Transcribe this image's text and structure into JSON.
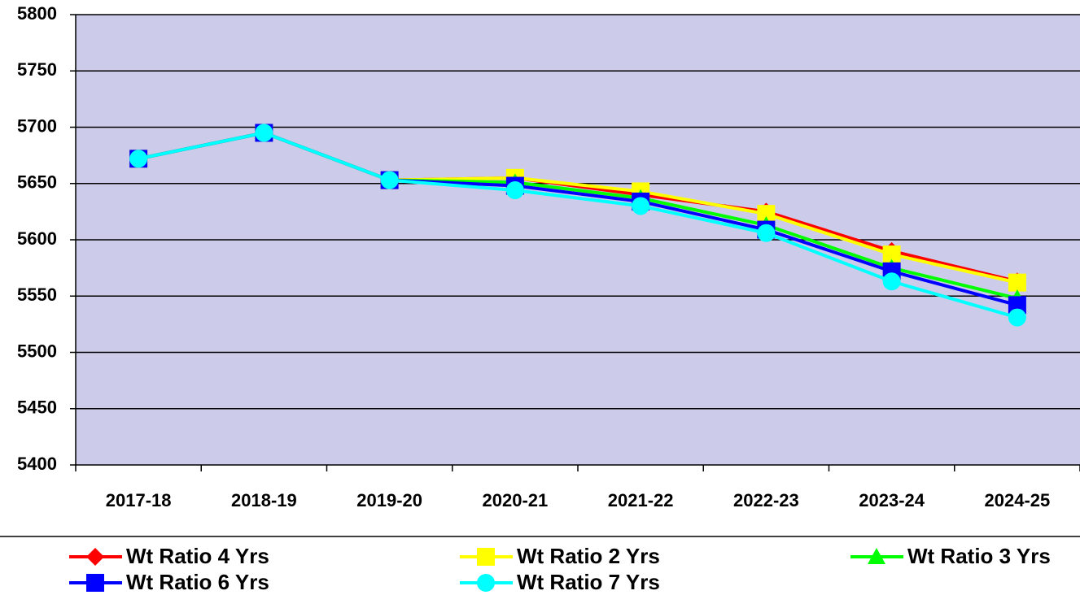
{
  "chart_data": {
    "type": "line",
    "categories": [
      "2017-18",
      "2018-19",
      "2019-20",
      "2020-21",
      "2021-22",
      "2022-23",
      "2023-24",
      "2024-25"
    ],
    "series": [
      {
        "name": "Wt Ratio 4 Yrs",
        "color": "#ff0000",
        "marker": "diamond",
        "values": [
          5672,
          5695,
          5653,
          5655,
          5640,
          5625,
          5590,
          5563
        ]
      },
      {
        "name": "Wt Ratio 2 Yrs",
        "color": "#ffff00",
        "marker": "square",
        "values": [
          5672,
          5695,
          5653,
          5655,
          5643,
          5623,
          5587,
          5562
        ]
      },
      {
        "name": "Wt Ratio 3 Yrs",
        "color": "#00ff00",
        "marker": "triangle",
        "values": [
          5672,
          5695,
          5653,
          5651,
          5637,
          5613,
          5575,
          5548
        ]
      },
      {
        "name": "Wt Ratio 6 Yrs",
        "color": "#0000ff",
        "marker": "square",
        "values": [
          5672,
          5695,
          5653,
          5648,
          5634,
          5609,
          5572,
          5542
        ]
      },
      {
        "name": "Wt Ratio 7 Yrs",
        "color": "#00ffff",
        "marker": "circle",
        "values": [
          5672,
          5695,
          5653,
          5644,
          5630,
          5606,
          5563,
          5531
        ]
      }
    ],
    "ylim": [
      5400,
      5800
    ],
    "yticks": [
      5400,
      5450,
      5500,
      5550,
      5600,
      5650,
      5700,
      5750,
      5800
    ],
    "grid": true,
    "legend": "bottom",
    "plot_background": "#ccccea"
  }
}
